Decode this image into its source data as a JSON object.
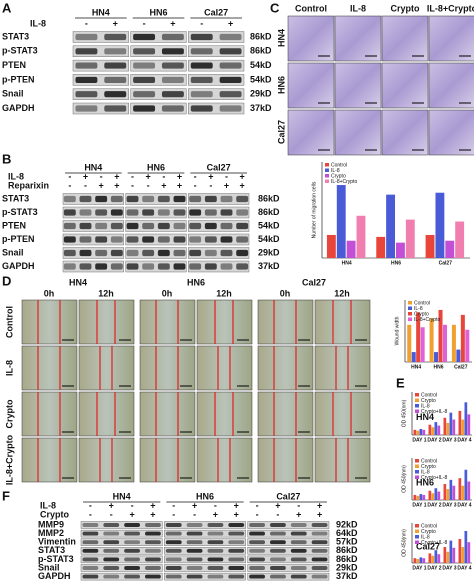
{
  "A": {
    "label": "A",
    "groups": [
      "HN4",
      "HN6",
      "Cal27"
    ],
    "treatments": [
      {
        "name": "IL-8",
        "signs": [
          "-",
          "+",
          "-",
          "+",
          "-",
          "+"
        ]
      }
    ],
    "rows": [
      {
        "protein": "STAT3",
        "size": "86kD"
      },
      {
        "protein": "p-STAT3",
        "size": "86kD"
      },
      {
        "protein": "PTEN",
        "size": "54kD"
      },
      {
        "protein": "p-PTEN",
        "size": "54kD"
      },
      {
        "protein": "Snail",
        "size": "29kD"
      },
      {
        "protein": "GAPDH",
        "size": "37kD"
      }
    ]
  },
  "B": {
    "label": "B",
    "groups": [
      "HN4",
      "HN6",
      "Cal27"
    ],
    "treatments": [
      {
        "name": "IL-8",
        "signs": [
          "-",
          "+",
          "-",
          "+",
          "-",
          "+",
          "-",
          "+",
          "-",
          "+",
          "-",
          "+"
        ]
      },
      {
        "name": "Reparixin",
        "signs": [
          "-",
          "-",
          "+",
          "+",
          "-",
          "-",
          "+",
          "+",
          "-",
          "-",
          "+",
          "+"
        ]
      }
    ],
    "rows": [
      {
        "protein": "STAT3",
        "size": "86kD"
      },
      {
        "protein": "p-STAT3",
        "size": "86kD"
      },
      {
        "protein": "PTEN",
        "size": "54kD"
      },
      {
        "protein": "p-PTEN",
        "size": "54kD"
      },
      {
        "protein": "Snail",
        "size": "29kD"
      },
      {
        "protein": "GAPDH",
        "size": "37kD"
      }
    ]
  },
  "C": {
    "label": "C",
    "columns": [
      "Control",
      "IL-8",
      "Crypto",
      "IL-8+Crypto"
    ],
    "rows": [
      "HN4",
      "HN6",
      "Cal27"
    ],
    "chart_data": {
      "type": "bar",
      "ylabel": "Number of migration cells",
      "categories": [
        "HN4",
        "HN6",
        "Cal27"
      ],
      "ylim": [
        0,
        250
      ],
      "series": [
        {
          "name": "Control",
          "color": "#e8463b",
          "values": [
            60,
            55,
            60
          ]
        },
        {
          "name": "IL-8",
          "color": "#4a5bd8",
          "values": [
            190,
            165,
            170
          ]
        },
        {
          "name": "Crypto",
          "color": "#c34fd6",
          "values": [
            45,
            40,
            45
          ]
        },
        {
          "name": "IL-8+Crypto",
          "color": "#f07fb0",
          "values": [
            110,
            100,
            95
          ]
        }
      ]
    }
  },
  "D": {
    "label": "D",
    "groups": [
      "HN4",
      "HN6",
      "Cal27"
    ],
    "times": [
      "0h",
      "12h"
    ],
    "rows": [
      "Control",
      "IL-8",
      "Crypto",
      "IL-8+Crypto"
    ],
    "chart_data": {
      "type": "bar",
      "ylabel": "Wound width",
      "categories": [
        "HN4",
        "HN6",
        "Cal27"
      ],
      "ylim": [
        0,
        50
      ],
      "series": [
        {
          "name": "Control",
          "color": "#f0a030",
          "values": [
            30,
            35,
            30
          ]
        },
        {
          "name": "IL-8",
          "color": "#4a5bd8",
          "values": [
            8,
            8,
            10
          ]
        },
        {
          "name": "Crypto",
          "color": "#e8463b",
          "values": [
            40,
            42,
            38
          ]
        },
        {
          "name": "IL-8+Crypto",
          "color": "#e060d8",
          "values": [
            28,
            30,
            26
          ]
        }
      ]
    }
  },
  "E": {
    "label": "E",
    "chart_data": [
      {
        "type": "bar",
        "title": "HN4",
        "ylabel": "OD 450(nm)",
        "categories": [
          "DAY 1",
          "DAY 2",
          "DAY 3",
          "DAY 4"
        ],
        "ylim": [
          0,
          2.5
        ],
        "series": [
          {
            "name": "Control",
            "color": "#e8463b",
            "values": [
              0.3,
              0.6,
              1.0,
              1.4
            ]
          },
          {
            "name": "Crypto",
            "color": "#f0a030",
            "values": [
              0.25,
              0.45,
              0.7,
              0.9
            ]
          },
          {
            "name": "IL-8",
            "color": "#4a5bd8",
            "values": [
              0.35,
              0.75,
              1.3,
              1.9
            ]
          },
          {
            "name": "Crypto+IL-8",
            "color": "#c34fd6",
            "values": [
              0.3,
              0.55,
              0.9,
              1.2
            ]
          }
        ]
      },
      {
        "type": "bar",
        "title": "HN6",
        "ylabel": "OD 450(nm)",
        "categories": [
          "DAY 1",
          "DAY 2",
          "DAY 3",
          "DAY 4"
        ],
        "ylim": [
          0,
          2.5
        ],
        "series": [
          {
            "name": "Control",
            "color": "#e8463b",
            "values": [
              0.3,
              0.55,
              0.95,
              1.3
            ]
          },
          {
            "name": "Crypto",
            "color": "#f0a030",
            "values": [
              0.25,
              0.4,
              0.65,
              0.85
            ]
          },
          {
            "name": "IL-8",
            "color": "#4a5bd8",
            "values": [
              0.35,
              0.7,
              1.2,
              1.8
            ]
          },
          {
            "name": "Crypto+IL-8",
            "color": "#c34fd6",
            "values": [
              0.3,
              0.5,
              0.85,
              1.1
            ]
          }
        ]
      },
      {
        "type": "bar",
        "title": "Cal27",
        "ylabel": "OD 450(nm)",
        "categories": [
          "DAY 1",
          "DAY 2",
          "DAY 3",
          "DAY 4"
        ],
        "ylim": [
          0,
          2.5
        ],
        "series": [
          {
            "name": "Control",
            "color": "#e8463b",
            "values": [
              0.3,
              0.6,
              1.0,
              1.5
            ]
          },
          {
            "name": "Crypto",
            "color": "#f0a030",
            "values": [
              0.25,
              0.45,
              0.7,
              1.0
            ]
          },
          {
            "name": "IL-8",
            "color": "#4a5bd8",
            "values": [
              0.35,
              0.8,
              1.4,
              2.0
            ]
          },
          {
            "name": "Crypto+IL-8",
            "color": "#c34fd6",
            "values": [
              0.3,
              0.55,
              0.95,
              1.3
            ]
          }
        ]
      }
    ]
  },
  "F": {
    "label": "F",
    "groups": [
      "HN4",
      "HN6",
      "Cal27"
    ],
    "treatments": [
      {
        "name": "IL-8",
        "signs": [
          "-",
          "+",
          "-",
          "+",
          "-",
          "+",
          "-",
          "+",
          "-",
          "+",
          "-",
          "+"
        ]
      },
      {
        "name": "Crypto",
        "signs": [
          "-",
          "-",
          "+",
          "+",
          "-",
          "-",
          "+",
          "+",
          "-",
          "-",
          "+",
          "+"
        ]
      }
    ],
    "rows": [
      {
        "protein": "MMP9",
        "size": "92kD"
      },
      {
        "protein": "MMP2",
        "size": "64kD"
      },
      {
        "protein": "Vimentin",
        "size": "57kD"
      },
      {
        "protein": "STAT3",
        "size": "86kD"
      },
      {
        "protein": "p-STAT3",
        "size": "86kD"
      },
      {
        "protein": "Snail",
        "size": "29kD"
      },
      {
        "protein": "GAPDH",
        "size": "37kD"
      }
    ]
  }
}
